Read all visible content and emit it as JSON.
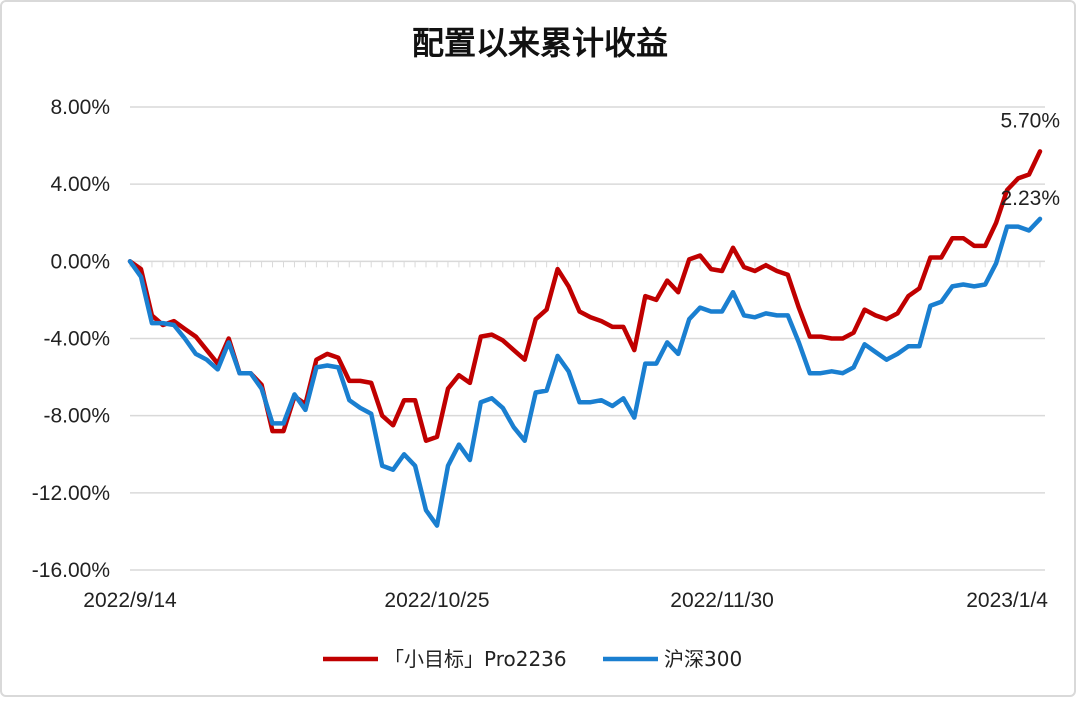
{
  "chart_data": {
    "type": "line",
    "title": "配置以来累计收益",
    "xlabel": "",
    "ylabel": "",
    "ylim": [
      -16,
      8
    ],
    "y_ticks": [
      8,
      4,
      0,
      -4,
      -8,
      -12,
      -16
    ],
    "y_tick_labels": [
      "8.00%",
      "4.00%",
      "0.00%",
      "-4.00%",
      "-8.00%",
      "-12.00%",
      "-16.00%"
    ],
    "x_tick_labels": [
      "2022/9/14",
      "2022/10/25",
      "2022/11/30",
      "2023/1/4"
    ],
    "x_tick_index": [
      0,
      28,
      54,
      80
    ],
    "grid": true,
    "legend_position": "bottom",
    "series": [
      {
        "name": "「小目标」Pro2236",
        "color": "#c00000",
        "end_label": "5.70%",
        "values": [
          0.0,
          -0.4,
          -2.8,
          -3.3,
          -3.1,
          -3.5,
          -3.9,
          -4.6,
          -5.3,
          -4.0,
          -5.8,
          -5.8,
          -6.4,
          -8.8,
          -8.8,
          -7.0,
          -7.4,
          -5.1,
          -4.8,
          -5.0,
          -6.2,
          -6.2,
          -6.3,
          -8.0,
          -8.5,
          -7.2,
          -7.2,
          -9.3,
          -9.1,
          -6.6,
          -5.9,
          -6.3,
          -3.9,
          -3.8,
          -4.1,
          -4.6,
          -5.1,
          -3.0,
          -2.5,
          -0.4,
          -1.3,
          -2.6,
          -2.9,
          -3.1,
          -3.4,
          -3.4,
          -4.6,
          -1.8,
          -2.0,
          -1.0,
          -1.6,
          0.1,
          0.3,
          -0.4,
          -0.5,
          0.7,
          -0.3,
          -0.5,
          -0.2,
          -0.5,
          -0.7,
          -2.4,
          -3.9,
          -3.9,
          -4.0,
          -4.0,
          -3.7,
          -2.5,
          -2.8,
          -3.0,
          -2.7,
          -1.8,
          -1.4,
          0.2,
          0.2,
          1.2,
          1.2,
          0.8,
          0.8,
          2.0,
          3.7,
          4.3,
          4.5,
          5.7
        ]
      },
      {
        "name": "沪深300",
        "color": "#1a7fd0",
        "end_label": "2.23%",
        "values": [
          0.0,
          -0.8,
          -3.2,
          -3.2,
          -3.3,
          -4.0,
          -4.8,
          -5.1,
          -5.6,
          -4.2,
          -5.8,
          -5.8,
          -6.6,
          -8.4,
          -8.4,
          -6.9,
          -7.7,
          -5.5,
          -5.4,
          -5.5,
          -7.2,
          -7.6,
          -7.9,
          -10.6,
          -10.8,
          -10.0,
          -10.6,
          -12.9,
          -13.7,
          -10.6,
          -9.5,
          -10.3,
          -7.3,
          -7.1,
          -7.6,
          -8.6,
          -9.3,
          -6.8,
          -6.7,
          -4.9,
          -5.7,
          -7.3,
          -7.3,
          -7.2,
          -7.5,
          -7.1,
          -8.1,
          -5.3,
          -5.3,
          -4.2,
          -4.8,
          -3.0,
          -2.4,
          -2.6,
          -2.6,
          -1.6,
          -2.8,
          -2.9,
          -2.7,
          -2.8,
          -2.8,
          -4.2,
          -5.8,
          -5.8,
          -5.7,
          -5.8,
          -5.5,
          -4.3,
          -4.7,
          -5.1,
          -4.8,
          -4.4,
          -4.4,
          -2.3,
          -2.1,
          -1.3,
          -1.2,
          -1.3,
          -1.2,
          -0.1,
          1.8,
          1.8,
          1.6,
          2.2
        ]
      }
    ]
  }
}
